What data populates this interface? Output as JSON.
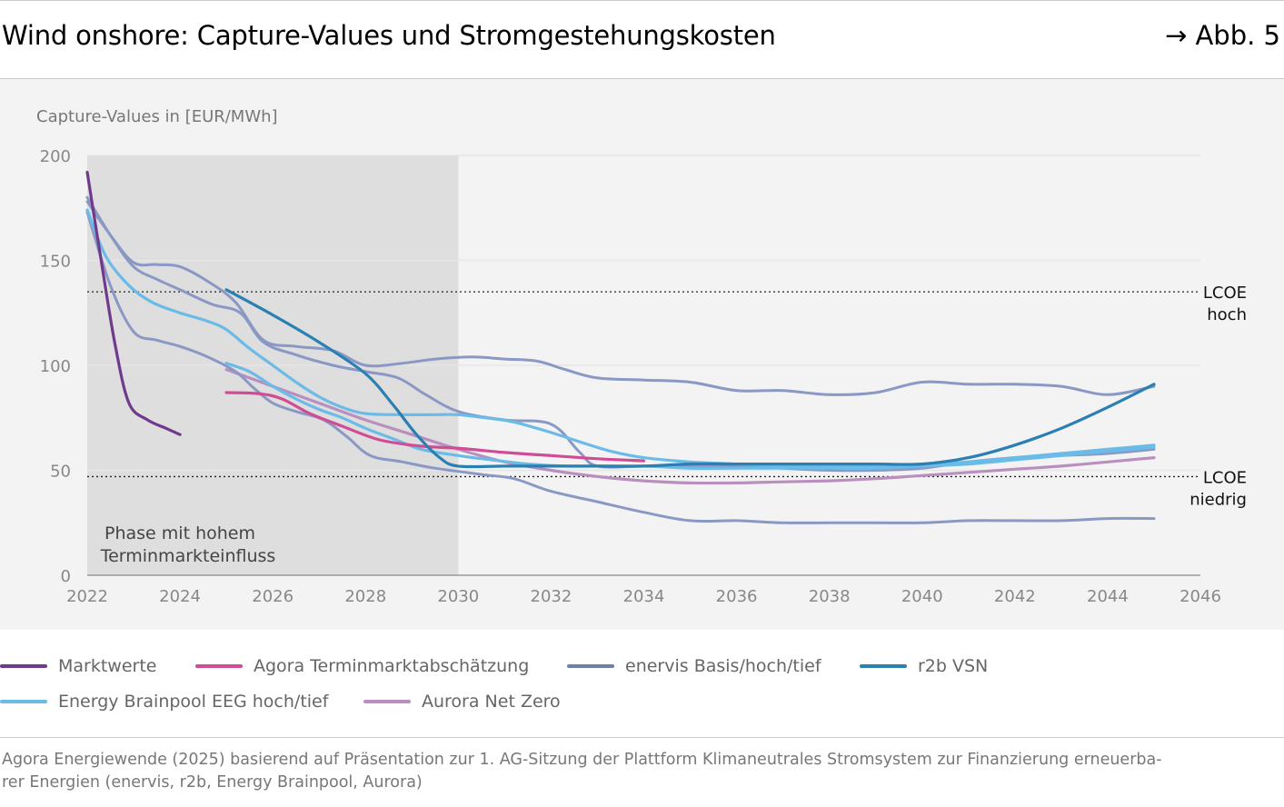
{
  "header": {
    "title": "Wind onshore: Capture-Values und Stromgestehungskosten",
    "figure_ref": "→ Abb. 5"
  },
  "chart_data": {
    "type": "line",
    "ylabel": "Capture-Values in [EUR/MWh]",
    "xlim": [
      2022,
      2046
    ],
    "ylim": [
      0,
      200
    ],
    "x_ticks": [
      2022,
      2024,
      2026,
      2028,
      2030,
      2032,
      2034,
      2036,
      2038,
      2040,
      2042,
      2044,
      2046
    ],
    "y_ticks": [
      0,
      50,
      100,
      150,
      200
    ],
    "grid": "horizontal",
    "shaded_region": {
      "x": [
        2022,
        2030
      ],
      "label_line1": "Phase mit hohem",
      "label_line2": "Terminmarkteinfluss"
    },
    "reference_lines": [
      {
        "y": 135,
        "label_line1": "LCOE",
        "label_line2": "hoch"
      },
      {
        "y": 47,
        "label_line1": "LCOE",
        "label_line2": "niedrig"
      }
    ],
    "colors": {
      "marktwerte": "#6f3a8c",
      "agora": "#d24b95",
      "enervis": "#8a98c4",
      "r2b": "#2a7fb3",
      "ebp": "#6bbbe8",
      "aurora": "#b98fc0",
      "lcoe": "#222222"
    },
    "series": [
      {
        "name": "Marktwerte",
        "color_key": "marktwerte",
        "width": 3.2,
        "points": [
          [
            2022,
            192
          ],
          [
            2022.3,
            150
          ],
          [
            2022.6,
            110
          ],
          [
            2022.9,
            82
          ],
          [
            2023.3,
            74
          ],
          [
            2023.7,
            70
          ],
          [
            2024,
            67
          ]
        ]
      },
      {
        "name": "Agora Terminmarktabschätzung",
        "color_key": "agora",
        "width": 3.2,
        "points": [
          [
            2025,
            87
          ],
          [
            2025.7,
            86.5
          ],
          [
            2026.2,
            84
          ],
          [
            2026.8,
            77
          ],
          [
            2027.5,
            71
          ],
          [
            2028.3,
            64.5
          ],
          [
            2029.2,
            61.5
          ],
          [
            2030,
            60.5
          ],
          [
            2031,
            58.5
          ],
          [
            2032,
            57
          ],
          [
            2033,
            55.5
          ],
          [
            2034,
            54.5
          ]
        ]
      },
      {
        "name": "enervis Basis",
        "color_key": "enervis",
        "width": 3,
        "points": [
          [
            2022,
            180
          ],
          [
            2022.5,
            162
          ],
          [
            2023,
            147
          ],
          [
            2023.5,
            141
          ],
          [
            2024,
            136
          ],
          [
            2024.7,
            129
          ],
          [
            2025.3,
            125
          ],
          [
            2025.8,
            111
          ],
          [
            2026.5,
            105
          ],
          [
            2027.3,
            100
          ],
          [
            2028,
            97
          ],
          [
            2028.7,
            94
          ],
          [
            2029.3,
            86
          ],
          [
            2030,
            78
          ],
          [
            2031,
            74
          ],
          [
            2032,
            72
          ],
          [
            2032.6,
            59
          ],
          [
            2033,
            52
          ],
          [
            2034,
            52
          ],
          [
            2035,
            52
          ],
          [
            2036,
            52
          ],
          [
            2037,
            51
          ],
          [
            2038,
            50
          ],
          [
            2039,
            50
          ],
          [
            2040,
            51
          ],
          [
            2041,
            54
          ],
          [
            2042,
            56
          ],
          [
            2043,
            57
          ],
          [
            2044,
            58
          ],
          [
            2045,
            60
          ]
        ]
      },
      {
        "name": "enervis hoch",
        "color_key": "enervis",
        "width": 3,
        "points": [
          [
            2022,
            178
          ],
          [
            2022.5,
            162
          ],
          [
            2023,
            149
          ],
          [
            2023.5,
            148
          ],
          [
            2024,
            147
          ],
          [
            2024.6,
            140
          ],
          [
            2025.2,
            130
          ],
          [
            2025.8,
            112
          ],
          [
            2026.5,
            109
          ],
          [
            2027.3,
            107
          ],
          [
            2028,
            100
          ],
          [
            2028.8,
            101
          ],
          [
            2029.5,
            103
          ],
          [
            2030.3,
            104
          ],
          [
            2031,
            103
          ],
          [
            2031.7,
            102
          ],
          [
            2032.3,
            98
          ],
          [
            2033,
            94
          ],
          [
            2034,
            93
          ],
          [
            2035,
            92
          ],
          [
            2036,
            88
          ],
          [
            2037,
            88
          ],
          [
            2038,
            86
          ],
          [
            2039,
            87
          ],
          [
            2040,
            92
          ],
          [
            2041,
            91
          ],
          [
            2042,
            91
          ],
          [
            2043,
            90
          ],
          [
            2044,
            86
          ],
          [
            2045,
            90
          ]
        ]
      },
      {
        "name": "enervis tief",
        "color_key": "enervis",
        "width": 3,
        "points": [
          [
            2022,
            173
          ],
          [
            2022.5,
            138
          ],
          [
            2023,
            116
          ],
          [
            2023.5,
            112
          ],
          [
            2024,
            109
          ],
          [
            2024.6,
            104
          ],
          [
            2025.2,
            97
          ],
          [
            2025.6,
            89
          ],
          [
            2026,
            82
          ],
          [
            2026.5,
            78
          ],
          [
            2027.1,
            74
          ],
          [
            2027.6,
            66
          ],
          [
            2028.1,
            57
          ],
          [
            2028.8,
            54
          ],
          [
            2029.5,
            51
          ],
          [
            2030.5,
            48
          ],
          [
            2031.2,
            46
          ],
          [
            2032,
            40
          ],
          [
            2033,
            35
          ],
          [
            2034,
            30
          ],
          [
            2035,
            26
          ],
          [
            2036,
            26
          ],
          [
            2037,
            25
          ],
          [
            2038,
            25
          ],
          [
            2039,
            25
          ],
          [
            2040,
            25
          ],
          [
            2041,
            26
          ],
          [
            2042,
            26
          ],
          [
            2043,
            26
          ],
          [
            2044,
            27
          ],
          [
            2045,
            27
          ]
        ]
      },
      {
        "name": "r2b VSN",
        "color_key": "r2b",
        "width": 3.2,
        "points": [
          [
            2025,
            136
          ],
          [
            2026,
            124
          ],
          [
            2027,
            111
          ],
          [
            2028,
            96
          ],
          [
            2028.6,
            81
          ],
          [
            2029.1,
            67
          ],
          [
            2029.6,
            56
          ],
          [
            2030,
            52
          ],
          [
            2031,
            52
          ],
          [
            2032,
            52
          ],
          [
            2033,
            52
          ],
          [
            2034,
            52
          ],
          [
            2035,
            53
          ],
          [
            2036,
            53
          ],
          [
            2037,
            53
          ],
          [
            2038,
            53
          ],
          [
            2039,
            53
          ],
          [
            2040,
            53
          ],
          [
            2041,
            56
          ],
          [
            2042,
            62
          ],
          [
            2043,
            70
          ],
          [
            2044,
            80
          ],
          [
            2045,
            91
          ]
        ]
      },
      {
        "name": "Energy Brainpool EEG hoch",
        "color_key": "ebp",
        "width": 3.2,
        "points": [
          [
            2022,
            174
          ],
          [
            2022.4,
            152
          ],
          [
            2022.9,
            138
          ],
          [
            2023.4,
            130
          ],
          [
            2024,
            125
          ],
          [
            2024.6,
            121
          ],
          [
            2025,
            117
          ],
          [
            2025.5,
            108
          ],
          [
            2026,
            100
          ],
          [
            2026.5,
            92
          ],
          [
            2027,
            85
          ],
          [
            2027.5,
            80
          ],
          [
            2028,
            77
          ],
          [
            2028.7,
            76.5
          ],
          [
            2029.5,
            76.5
          ],
          [
            2030,
            76.5
          ],
          [
            2030.6,
            75
          ],
          [
            2031.2,
            73
          ],
          [
            2032,
            68
          ],
          [
            2032.7,
            63
          ],
          [
            2033.3,
            59
          ],
          [
            2034,
            56
          ],
          [
            2035,
            54
          ],
          [
            2036,
            53
          ],
          [
            2037,
            52
          ],
          [
            2038,
            52
          ],
          [
            2039,
            52
          ],
          [
            2040,
            53
          ],
          [
            2041,
            54
          ],
          [
            2042,
            56
          ],
          [
            2043,
            58
          ],
          [
            2044,
            60
          ],
          [
            2045,
            62
          ]
        ]
      },
      {
        "name": "Energy Brainpool EEG tief",
        "color_key": "ebp",
        "width": 3.2,
        "points": [
          [
            2025,
            101
          ],
          [
            2025.5,
            97
          ],
          [
            2026,
            90
          ],
          [
            2026.5,
            84
          ],
          [
            2027,
            79
          ],
          [
            2027.5,
            75
          ],
          [
            2028,
            70
          ],
          [
            2028.6,
            65
          ],
          [
            2029.2,
            60
          ],
          [
            2030,
            57
          ],
          [
            2030.7,
            55
          ],
          [
            2031.5,
            53
          ],
          [
            2032.3,
            52
          ],
          [
            2033,
            52
          ],
          [
            2034,
            52
          ],
          [
            2035,
            51
          ],
          [
            2036,
            51
          ],
          [
            2037,
            51
          ],
          [
            2038,
            51
          ],
          [
            2039,
            51
          ],
          [
            2040,
            52
          ],
          [
            2041,
            53
          ],
          [
            2042,
            55
          ],
          [
            2043,
            57
          ],
          [
            2044,
            59
          ],
          [
            2045,
            61
          ]
        ]
      },
      {
        "name": "Aurora Net Zero",
        "color_key": "aurora",
        "width": 3.2,
        "points": [
          [
            2025,
            98
          ],
          [
            2026,
            90
          ],
          [
            2027,
            82
          ],
          [
            2028,
            74
          ],
          [
            2029,
            67
          ],
          [
            2030,
            60
          ],
          [
            2031,
            54
          ],
          [
            2032,
            50
          ],
          [
            2033,
            47
          ],
          [
            2034,
            45
          ],
          [
            2035,
            44
          ],
          [
            2036,
            44
          ],
          [
            2037,
            44.5
          ],
          [
            2038,
            45
          ],
          [
            2039,
            46
          ],
          [
            2040,
            47.5
          ],
          [
            2041,
            49
          ],
          [
            2042,
            50.5
          ],
          [
            2043,
            52
          ],
          [
            2044,
            54
          ],
          [
            2045,
            56
          ]
        ]
      }
    ]
  },
  "legend": {
    "items": [
      {
        "label": "Marktwerte",
        "color": "#6f3a8c"
      },
      {
        "label": "Agora Terminmarktabschätzung",
        "color": "#d24b95"
      },
      {
        "label": "enervis Basis/hoch/tief",
        "color": "#8a98c4"
      },
      {
        "label": "r2b VSN",
        "color": "#2a7fb3"
      },
      {
        "label": "Energy Brainpool EEG hoch/tief",
        "color": "#6bbbe8"
      },
      {
        "label": "Aurora Net Zero",
        "color": "#b98fc0"
      }
    ]
  },
  "source": {
    "line1": "Agora Energiewende (2025) basierend auf Präsentation zur 1. AG-Sitzung der Plattform Klimaneutrales Stromsystem zur Finanzierung erneuerba-",
    "line2": "rer Energien (enervis, r2b, Energy Brainpool, Aurora)"
  }
}
